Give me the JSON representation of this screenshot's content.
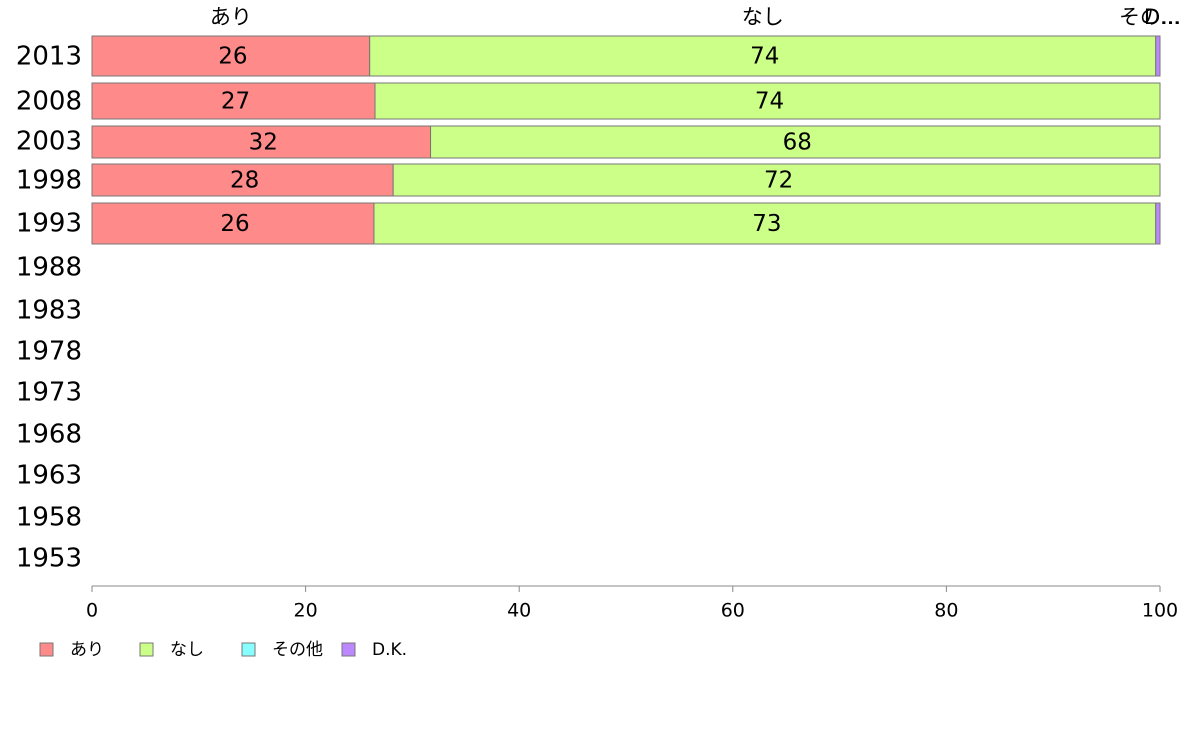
{
  "chart_data": {
    "type": "bar",
    "orientation": "horizontal",
    "stacked": true,
    "categories": [
      "2013",
      "2008",
      "2003",
      "1998",
      "1993",
      "1988",
      "1983",
      "1978",
      "1973",
      "1968",
      "1963",
      "1958",
      "1953"
    ],
    "series": [
      {
        "name": "あり",
        "color": "#ff8a8a",
        "values": [
          26,
          26.5,
          31.7,
          28.2,
          26.4,
          null,
          null,
          null,
          null,
          null,
          null,
          null,
          null
        ],
        "labels": [
          "26",
          "27",
          "32",
          "28",
          "26",
          "",
          "",
          "",
          "",
          "",
          "",
          "",
          ""
        ]
      },
      {
        "name": "なし",
        "color": "#ccff88",
        "values": [
          73.6,
          73.5,
          68.3,
          71.8,
          73.2,
          null,
          null,
          null,
          null,
          null,
          null,
          null,
          null
        ],
        "labels": [
          "74",
          "74",
          "68",
          "72",
          "73",
          "",
          "",
          "",
          "",
          "",
          "",
          "",
          ""
        ]
      },
      {
        "name": "その他",
        "color": "#88ffff",
        "values": [
          0,
          0,
          0,
          0,
          0,
          null,
          null,
          null,
          null,
          null,
          null,
          null,
          null
        ],
        "labels": [
          "",
          "",
          "",
          "",
          "",
          "",
          "",
          "",
          "",
          "",
          "",
          "",
          ""
        ]
      },
      {
        "name": "D.K.",
        "color": "#bb88ff",
        "values": [
          0.4,
          0,
          0,
          0,
          0.4,
          null,
          null,
          null,
          null,
          null,
          null,
          null,
          null
        ],
        "labels": [
          "",
          "",
          "",
          "",
          "",
          "",
          "",
          "",
          "",
          "",
          "",
          "",
          ""
        ]
      }
    ],
    "top_labels": [
      "あり",
      "なし",
      "その...",
      "D..."
    ],
    "x_ticks": [
      "0",
      "20",
      "40",
      "60",
      "80",
      "100"
    ],
    "xlim": [
      0,
      100
    ],
    "grid": false,
    "legend": {
      "position": "bottom-left",
      "entries": [
        "あり",
        "なし",
        "その他",
        "D.K."
      ]
    }
  }
}
